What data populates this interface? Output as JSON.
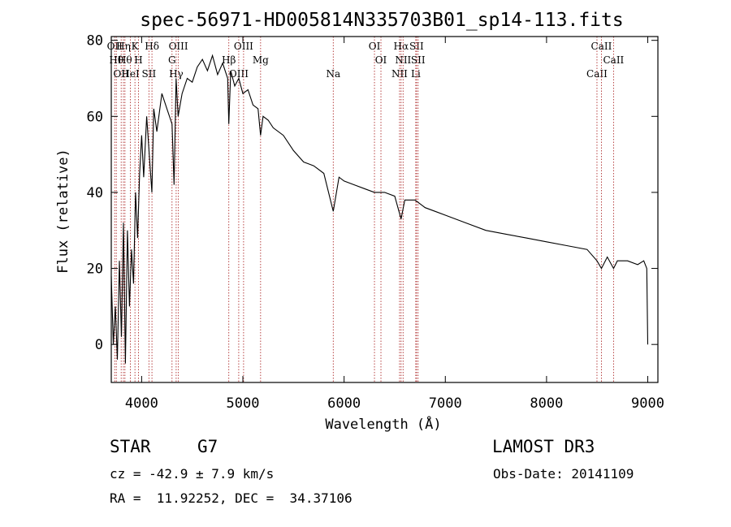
{
  "chart_data": {
    "type": "line",
    "title": "spec-56971-HD005814N335703B01_sp14-113.fits",
    "xlabel": "Wavelength (Å)",
    "ylabel": "Flux (relative)",
    "xlim": [
      3700,
      9100
    ],
    "ylim": [
      -10,
      81
    ],
    "xticks": [
      4000,
      5000,
      6000,
      7000,
      8000,
      9000
    ],
    "yticks": [
      0,
      20,
      40,
      60,
      80
    ],
    "grid": false,
    "line_color": "#000000",
    "marker_color": "#b03030",
    "series": [
      {
        "x": [
          3700,
          3720,
          3740,
          3760,
          3780,
          3800,
          3820,
          3840,
          3860,
          3880,
          3900,
          3920,
          3940,
          3960,
          3980,
          4000,
          4020,
          4050,
          4080,
          4101,
          4120,
          4150,
          4200,
          4250,
          4300,
          4320,
          4340,
          4360,
          4400,
          4450,
          4500,
          4550,
          4600,
          4650,
          4700,
          4750,
          4800,
          4850,
          4861,
          4880,
          4920,
          4960,
          5000,
          5050,
          5100,
          5150,
          5175,
          5200,
          5250,
          5300,
          5400,
          5500,
          5600,
          5700,
          5800,
          5893,
          5950,
          6000,
          6100,
          6200,
          6300,
          6400,
          6500,
          6563,
          6600,
          6700,
          6800,
          6900,
          7000,
          7200,
          7400,
          7600,
          7800,
          8000,
          8200,
          8400,
          8498,
          8542,
          8600,
          8662,
          8700,
          8800,
          8900,
          8960,
          8990,
          9000
        ],
        "y": [
          18,
          0,
          10,
          -4,
          22,
          2,
          32,
          -5,
          30,
          10,
          25,
          16,
          40,
          28,
          45,
          55,
          44,
          60,
          48,
          40,
          62,
          56,
          66,
          62,
          58,
          42,
          70,
          60,
          66,
          70,
          69,
          73,
          75,
          72,
          76,
          71,
          74,
          70,
          58,
          72,
          68,
          70,
          66,
          67,
          63,
          62,
          55,
          60,
          59,
          57,
          55,
          51,
          48,
          47,
          45,
          35,
          44,
          43,
          42,
          41,
          40,
          40,
          39,
          33,
          38,
          38,
          36,
          35,
          34,
          32,
          30,
          29,
          28,
          27,
          26,
          25,
          22,
          20,
          23,
          20,
          22,
          22,
          21,
          22,
          20,
          0
        ]
      }
    ],
    "line_markers": [
      {
        "wl": 3734,
        "label": "OII"
      },
      {
        "wl": 3750,
        "label": "Hθ"
      },
      {
        "wl": 3798,
        "label": "OII"
      },
      {
        "wl": 3820,
        "label": "Hη"
      },
      {
        "wl": 3835,
        "label": "Hθ"
      },
      {
        "wl": 3889,
        "label": "HeI"
      },
      {
        "wl": 3934,
        "label": "K"
      },
      {
        "wl": 3969,
        "label": "H"
      },
      {
        "wl": 4072,
        "label": "SII"
      },
      {
        "wl": 4102,
        "label": "Hδ"
      },
      {
        "wl": 4300,
        "label": "G"
      },
      {
        "wl": 4341,
        "label": "Hγ"
      },
      {
        "wl": 4363,
        "label": "OIII"
      },
      {
        "wl": 4861,
        "label": "Hβ"
      },
      {
        "wl": 4959,
        "label": "OIII"
      },
      {
        "wl": 5007,
        "label": "OIII"
      },
      {
        "wl": 5175,
        "label": "Mg"
      },
      {
        "wl": 5893,
        "label": "Na"
      },
      {
        "wl": 6300,
        "label": "OI"
      },
      {
        "wl": 6364,
        "label": "OI"
      },
      {
        "wl": 6548,
        "label": "NII"
      },
      {
        "wl": 6563,
        "label": "Hα"
      },
      {
        "wl": 6583,
        "label": "NII"
      },
      {
        "wl": 6708,
        "label": "Li"
      },
      {
        "wl": 6716,
        "label": "SII"
      },
      {
        "wl": 6731,
        "label": "SII"
      },
      {
        "wl": 8498,
        "label": "CaII"
      },
      {
        "wl": 8542,
        "label": "CaII"
      },
      {
        "wl": 8662,
        "label": "CaII"
      }
    ]
  },
  "info": {
    "object_class": "STAR",
    "subclass": "G7",
    "survey": "LAMOST DR3",
    "cz": "cz = -42.9 ± 7.9 km/s",
    "obs_date": "Obs-Date: 20141109",
    "coords": "RA =  11.92252, DEC =  34.37106"
  }
}
